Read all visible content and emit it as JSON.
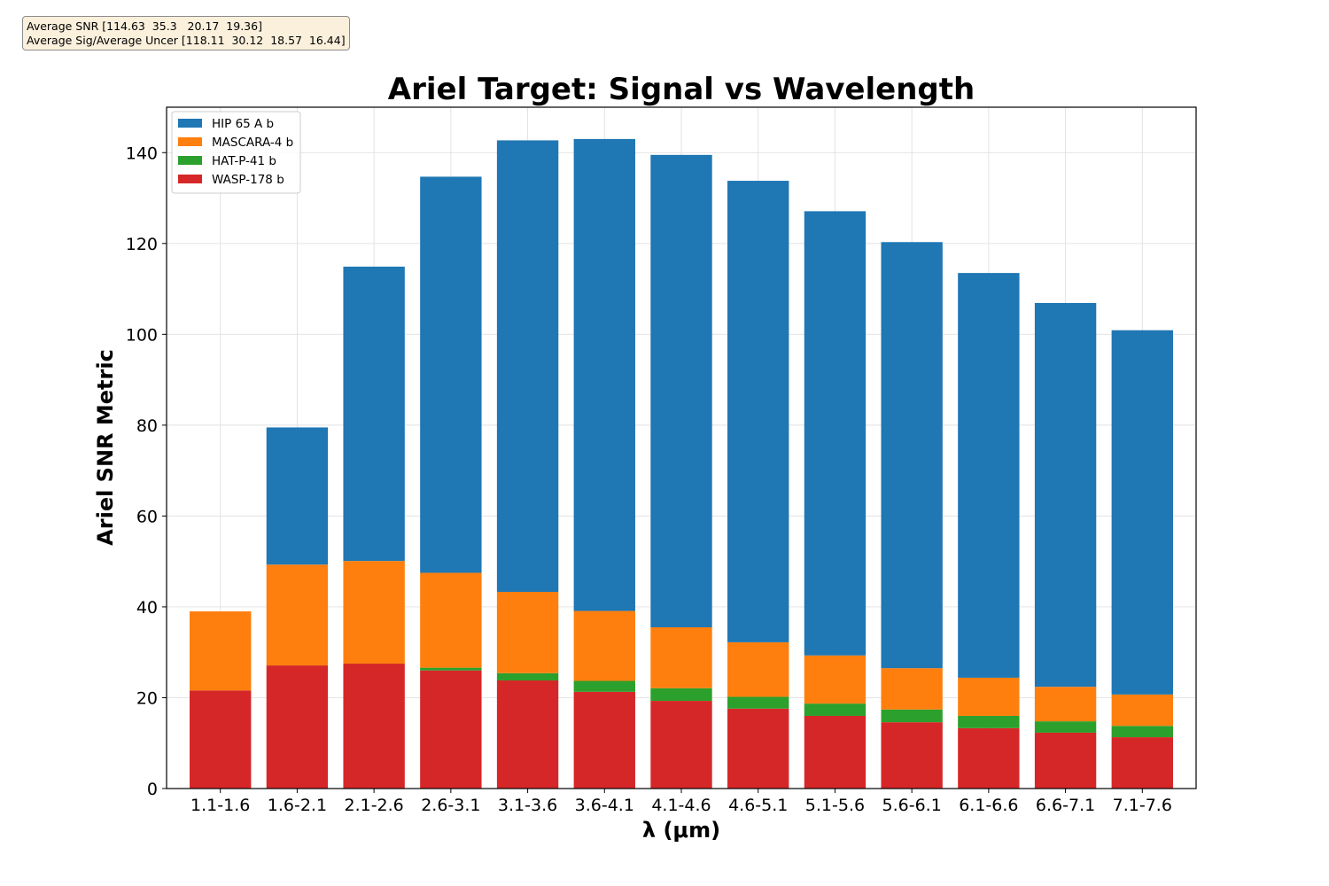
{
  "annotation": {
    "line1": "Average SNR [114.63  35.3   20.17  19.36]",
    "line2": "Average Sig/Average Uncer [118.11  30.12  18.57  16.44]"
  },
  "chart_data": {
    "type": "bar",
    "stacked": true,
    "title": "Ariel Target: Signal vs Wavelength",
    "xlabel": "λ (μm)",
    "ylabel": "Ariel SNR Metric",
    "ylim": [
      0,
      150
    ],
    "yticks": [
      0,
      20,
      40,
      60,
      80,
      100,
      120,
      140
    ],
    "grid": true,
    "legend_position": "top-left",
    "categories": [
      "1.1-1.6",
      "1.6-2.1",
      "2.1-2.6",
      "2.6-3.1",
      "3.1-3.6",
      "3.6-4.1",
      "4.1-4.6",
      "4.6-5.1",
      "5.1-5.6",
      "5.6-6.1",
      "6.1-6.6",
      "6.6-7.1",
      "7.1-7.6"
    ],
    "series": [
      {
        "name": "WASP-178 b",
        "color": "#d62728",
        "values": [
          21.6,
          27.1,
          27.5,
          26.0,
          23.8,
          21.3,
          19.3,
          17.6,
          16.0,
          14.6,
          13.3,
          12.3,
          11.3
        ]
      },
      {
        "name": "HAT-P-41 b",
        "color": "#2ca02c",
        "values": [
          0,
          0,
          0,
          0.6,
          1.6,
          2.4,
          2.8,
          2.6,
          2.7,
          2.8,
          2.7,
          2.5,
          2.5
        ]
      },
      {
        "name": "MASCARA-4 b",
        "color": "#ff7f0e",
        "values": [
          17.4,
          22.2,
          22.6,
          20.9,
          17.9,
          15.4,
          13.4,
          12.0,
          10.6,
          9.1,
          8.4,
          7.6,
          6.9
        ]
      },
      {
        "name": "HIP 65 A b",
        "color": "#1f77b4",
        "values": [
          0,
          30.2,
          64.8,
          87.2,
          99.4,
          103.9,
          104.0,
          101.6,
          97.8,
          93.8,
          89.1,
          84.5,
          80.2
        ]
      }
    ],
    "legend_order": [
      "HIP 65 A b",
      "MASCARA-4 b",
      "HAT-P-41 b",
      "WASP-178 b"
    ]
  }
}
